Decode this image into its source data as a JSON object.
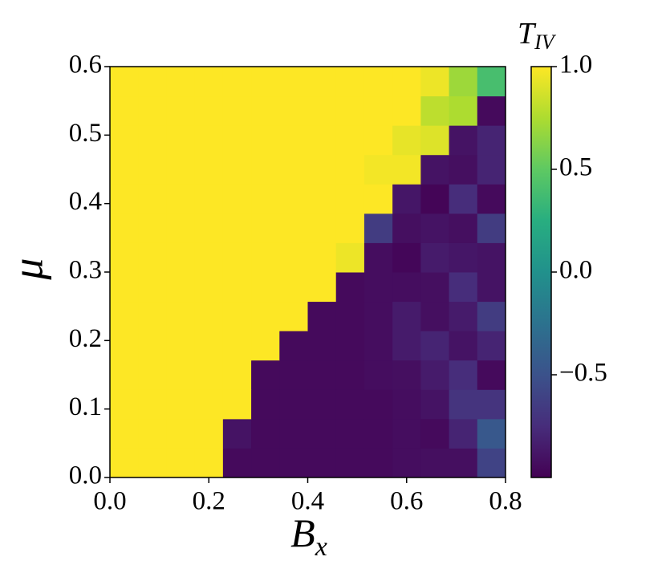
{
  "chart_data": {
    "type": "heatmap",
    "x_label": {
      "base": "B",
      "sub": "x"
    },
    "y_label": "μ",
    "colorbar_label": {
      "base": "T",
      "sub": "IV"
    },
    "colormap": "viridis",
    "xlim": [
      0,
      0.8
    ],
    "ylim": [
      0,
      0.6
    ],
    "clim": [
      -1,
      1
    ],
    "xticks": [
      {
        "value": 0,
        "label": "0.0"
      },
      {
        "value": 0.2,
        "label": "0.2"
      },
      {
        "value": 0.4,
        "label": "0.4"
      },
      {
        "value": 0.6,
        "label": "0.6"
      },
      {
        "value": 0.8,
        "label": "0.8"
      }
    ],
    "yticks": [
      {
        "value": 0,
        "label": "0.0"
      },
      {
        "value": 0.1,
        "label": "0.1"
      },
      {
        "value": 0.2,
        "label": "0.2"
      },
      {
        "value": 0.3,
        "label": "0.3"
      },
      {
        "value": 0.4,
        "label": "0.4"
      },
      {
        "value": 0.5,
        "label": "0.5"
      },
      {
        "value": 0.6,
        "label": "0.6"
      }
    ],
    "cticks": [
      {
        "value": -0.5,
        "label": "−0.5"
      },
      {
        "value": 0,
        "label": "0.0"
      },
      {
        "value": 0.5,
        "label": "0.5"
      },
      {
        "value": 1,
        "label": "1.0"
      }
    ],
    "z": [
      [
        1,
        1,
        1,
        1,
        -0.95,
        -0.95,
        -0.95,
        -0.95,
        -0.95,
        -0.95,
        -0.93,
        -0.92,
        -0.92,
        -0.6
      ],
      [
        1,
        1,
        1,
        1,
        -0.9,
        -0.95,
        -0.95,
        -0.95,
        -0.95,
        -0.95,
        -0.93,
        -0.95,
        -0.8,
        -0.45
      ],
      [
        1,
        1,
        1,
        1,
        1,
        -0.95,
        -0.95,
        -0.95,
        -0.95,
        -0.95,
        -0.93,
        -0.9,
        -0.7,
        -0.7
      ],
      [
        1,
        1,
        1,
        1,
        1,
        -0.95,
        -0.95,
        -0.95,
        -0.95,
        -0.93,
        -0.92,
        -0.85,
        -0.75,
        -0.95
      ],
      [
        1,
        1,
        1,
        1,
        1,
        1,
        -0.95,
        -0.95,
        -0.95,
        -0.93,
        -0.85,
        -0.8,
        -0.9,
        -0.8
      ],
      [
        1,
        1,
        1,
        1,
        1,
        1,
        1,
        -0.95,
        -0.95,
        -0.93,
        -0.85,
        -0.92,
        -0.85,
        -0.65
      ],
      [
        1,
        1,
        1,
        1,
        1,
        1,
        1,
        1,
        -0.95,
        -0.93,
        -0.93,
        -0.92,
        -0.75,
        -0.9
      ],
      [
        1,
        1,
        1,
        1,
        1,
        1,
        1,
        1,
        0.95,
        -0.93,
        -0.97,
        -0.85,
        -0.88,
        -0.9
      ],
      [
        1,
        1,
        1,
        1,
        1,
        1,
        1,
        1,
        1,
        -0.65,
        -0.92,
        -0.9,
        -0.92,
        -0.65
      ],
      [
        1,
        1,
        1,
        1,
        1,
        1,
        1,
        1,
        1,
        1,
        -0.88,
        -0.98,
        -0.75,
        -0.95
      ],
      [
        1,
        1,
        1,
        1,
        1,
        1,
        1,
        1,
        1,
        0.97,
        0.97,
        -0.9,
        -0.92,
        -0.8
      ],
      [
        1,
        1,
        1,
        1,
        1,
        1,
        1,
        1,
        1,
        1,
        0.93,
        0.9,
        -0.9,
        -0.8
      ],
      [
        1,
        1,
        1,
        1,
        1,
        1,
        1,
        1,
        1,
        1,
        1,
        0.8,
        0.75,
        -0.95
      ],
      [
        1,
        1,
        1,
        1,
        1,
        1,
        1,
        1,
        1,
        1,
        1,
        0.95,
        0.7,
        0.4
      ]
    ]
  }
}
